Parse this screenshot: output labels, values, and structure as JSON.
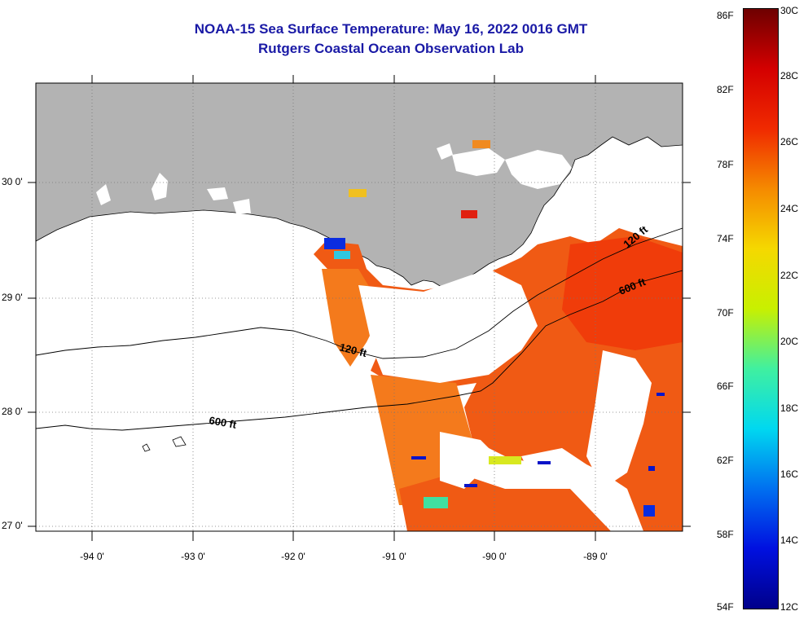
{
  "title": {
    "line1": "NOAA-15 Sea Surface Temperature:  May 16, 2022 0016 GMT",
    "line2": "Rutgers Coastal Ocean Observation Lab"
  },
  "axes": {
    "x_ticks": [
      "-94 0'",
      "-93 0'",
      "-92 0'",
      "-91 0'",
      "-90 0'",
      "-89 0'"
    ],
    "y_ticks": [
      "30 0'",
      "29 0'",
      "28 0'",
      "27 0'"
    ]
  },
  "contours": {
    "c120_upper": "120 ft",
    "c600_upper": "600 ft",
    "c120_lower": "120 ft",
    "c600_lower": "600 ft"
  },
  "colorbar": {
    "fahrenheit": [
      "86F",
      "82F",
      "78F",
      "74F",
      "70F",
      "66F",
      "62F",
      "58F",
      "54F"
    ],
    "celsius": [
      "30C",
      "28C",
      "26C",
      "24C",
      "22C",
      "20C",
      "18C",
      "16C",
      "14C",
      "12C"
    ]
  },
  "colors": {
    "land": "#b3b3b3",
    "title": "#1a1aa6",
    "sst_warm": "#f05a14",
    "sst_cold": "#0a14c8"
  }
}
